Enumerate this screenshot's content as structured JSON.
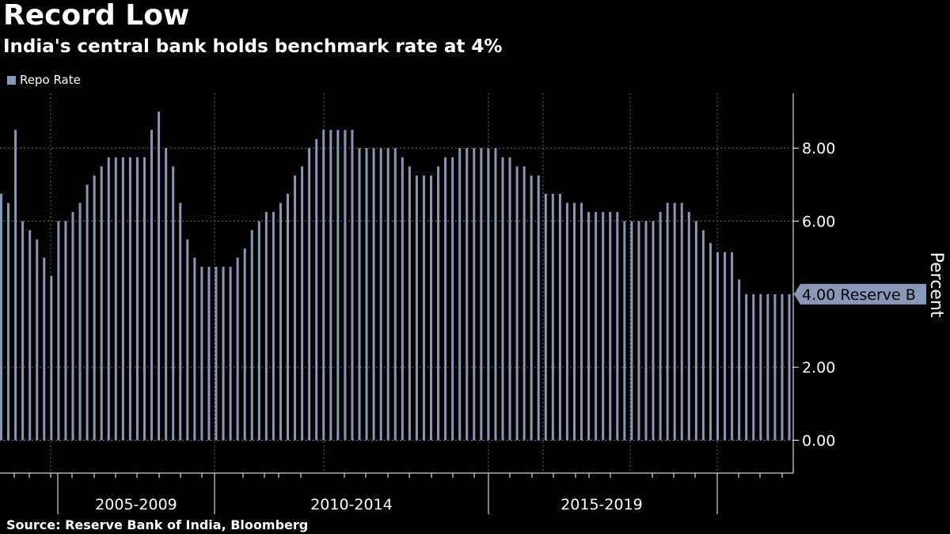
{
  "header": {
    "title": "Record Low",
    "subtitle": "India's central bank holds benchmark rate at 4%"
  },
  "footer": {
    "source": "Source: Reserve Bank of India, Bloomberg"
  },
  "colors": {
    "bar": "#8a96b8",
    "grid": "#6a6a6a",
    "axis": "#ffffff",
    "background": "#000000"
  },
  "chart_data": {
    "type": "bar",
    "title": "Record Low",
    "subtitle": "India's central bank holds benchmark rate at 4%",
    "xlabel": "",
    "ylabel": "Percent",
    "ylim": [
      -0.9,
      9.5
    ],
    "y_ticks": [
      "0.00",
      "2.00",
      "6.00",
      "8.00"
    ],
    "x_period_labels": [
      "2005-2009",
      "2010-2014",
      "2015-2019"
    ],
    "legend": [
      "Repo Rate"
    ],
    "last_value_label": "4.00 Reserve B",
    "series": [
      {
        "name": "Repo Rate",
        "values": [
          6.75,
          6.5,
          8.5,
          6.0,
          5.75,
          5.5,
          5.0,
          4.5,
          6.0,
          6.0,
          6.25,
          6.5,
          7.0,
          7.25,
          7.5,
          7.75,
          7.75,
          7.75,
          7.75,
          7.75,
          7.75,
          8.5,
          9.0,
          8.0,
          7.5,
          6.5,
          5.5,
          5.0,
          4.75,
          4.75,
          4.75,
          4.75,
          4.75,
          5.0,
          5.25,
          5.75,
          6.0,
          6.25,
          6.25,
          6.5,
          6.75,
          7.25,
          7.5,
          8.0,
          8.25,
          8.5,
          8.5,
          8.5,
          8.5,
          8.5,
          8.0,
          8.0,
          8.0,
          8.0,
          8.0,
          8.0,
          7.75,
          7.5,
          7.25,
          7.25,
          7.25,
          7.5,
          7.75,
          7.75,
          8.0,
          8.0,
          8.0,
          8.0,
          8.0,
          8.0,
          7.75,
          7.75,
          7.5,
          7.5,
          7.25,
          7.25,
          6.75,
          6.75,
          6.75,
          6.5,
          6.5,
          6.5,
          6.25,
          6.25,
          6.25,
          6.25,
          6.25,
          6.0,
          6.0,
          6.0,
          6.0,
          6.0,
          6.25,
          6.5,
          6.5,
          6.5,
          6.25,
          6.0,
          5.75,
          5.4,
          5.15,
          5.15,
          5.15,
          4.4,
          4.0,
          4.0,
          4.0,
          4.0,
          4.0,
          4.0,
          4.0
        ]
      }
    ]
  }
}
